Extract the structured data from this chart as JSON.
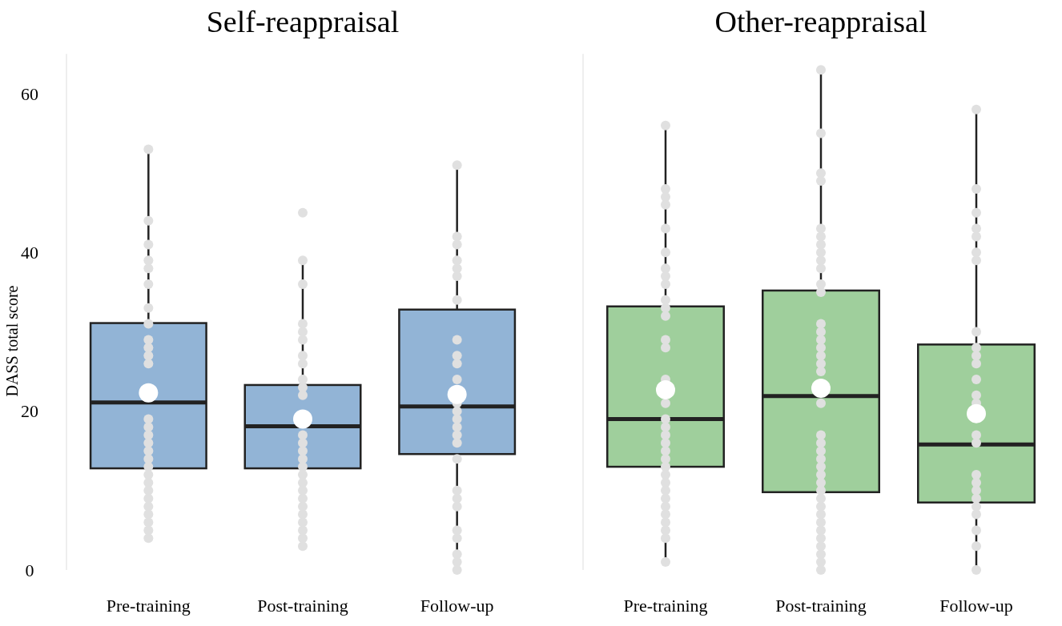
{
  "chart_data": [
    {
      "type": "box",
      "title": "Self-reappraisal",
      "ylabel": "DASS total score",
      "categories": [
        "Pre-training",
        "Post-training",
        "Follow-up"
      ],
      "ylim": [
        0,
        65
      ],
      "yticks": [
        0,
        20,
        40,
        60
      ],
      "grid": false,
      "series": [
        {
          "type": "box",
          "color": "#92b4d6",
          "boxes": [
            {
              "low": 4,
              "q1": 12.8,
              "median": 21.1,
              "q3": 31.1,
              "high": 53,
              "mean": 22.3
            },
            {
              "low": 3,
              "q1": 12.8,
              "median": 18.1,
              "q3": 23.3,
              "high": 39,
              "mean": 19,
              "outliers": [
                45
              ]
            },
            {
              "low": 0,
              "q1": 14.6,
              "median": 20.6,
              "q3": 32.8,
              "high": 51,
              "mean": 22.1
            }
          ]
        },
        {
          "type": "scatter",
          "color": "#e0e0e0",
          "x": [
            "Pre-training",
            "Pre-training",
            "Pre-training",
            "Pre-training",
            "Pre-training",
            "Pre-training",
            "Pre-training",
            "Pre-training",
            "Pre-training",
            "Pre-training",
            "Pre-training",
            "Pre-training",
            "Pre-training",
            "Pre-training",
            "Pre-training",
            "Pre-training",
            "Pre-training",
            "Pre-training",
            "Pre-training",
            "Pre-training",
            "Pre-training",
            "Pre-training",
            "Pre-training",
            "Pre-training",
            "Pre-training",
            "Pre-training",
            "Pre-training",
            "Pre-training",
            "Post-training",
            "Post-training",
            "Post-training",
            "Post-training",
            "Post-training",
            "Post-training",
            "Post-training",
            "Post-training",
            "Post-training",
            "Post-training",
            "Post-training",
            "Post-training",
            "Post-training",
            "Post-training",
            "Post-training",
            "Post-training",
            "Post-training",
            "Post-training",
            "Post-training",
            "Post-training",
            "Post-training",
            "Post-training",
            "Post-training",
            "Post-training",
            "Post-training",
            "Follow-up",
            "Follow-up",
            "Follow-up",
            "Follow-up",
            "Follow-up",
            "Follow-up",
            "Follow-up",
            "Follow-up",
            "Follow-up",
            "Follow-up",
            "Follow-up",
            "Follow-up",
            "Follow-up",
            "Follow-up",
            "Follow-up",
            "Follow-up",
            "Follow-up",
            "Follow-up",
            "Follow-up",
            "Follow-up",
            "Follow-up",
            "Follow-up",
            "Follow-up",
            "Follow-up",
            "Follow-up",
            "Follow-up"
          ],
          "values": [
            53,
            44,
            41,
            39,
            38,
            36,
            33,
            31,
            29,
            28,
            27,
            26,
            19,
            18,
            17,
            16,
            15,
            14,
            13,
            12,
            11,
            10,
            9,
            8,
            7,
            6,
            5,
            4,
            39,
            36,
            31,
            30,
            29,
            27,
            26,
            24,
            23,
            22,
            17,
            16,
            15,
            14,
            13,
            12,
            11,
            10,
            9,
            8,
            7,
            6,
            5,
            4,
            3,
            51,
            42,
            41,
            39,
            38,
            37,
            34,
            29,
            27,
            26,
            24,
            21,
            20,
            19,
            18,
            17,
            16,
            14,
            10,
            9,
            8,
            5,
            4,
            2,
            1,
            0
          ]
        }
      ]
    },
    {
      "type": "box",
      "title": "Other-reappraisal",
      "categories": [
        "Pre-training",
        "Post-training",
        "Follow-up"
      ],
      "ylim": [
        0,
        65
      ],
      "tick_labels": "x",
      "grid": false,
      "series": [
        {
          "type": "box",
          "color": "#9fcf9c",
          "boxes": [
            {
              "low": 1,
              "q1": 13,
              "median": 19,
              "q3": 33.2,
              "high": 56,
              "mean": 22.7
            },
            {
              "low": 0,
              "q1": 9.8,
              "median": 21.9,
              "q3": 35.2,
              "high": 63,
              "mean": 22.9
            },
            {
              "low": 0,
              "q1": 8.5,
              "median": 15.8,
              "q3": 28.4,
              "high": 58,
              "mean": 19.7
            }
          ]
        },
        {
          "type": "scatter",
          "color": "#e0e0e0",
          "x": [
            "Pre-training",
            "Pre-training",
            "Pre-training",
            "Pre-training",
            "Pre-training",
            "Pre-training",
            "Pre-training",
            "Pre-training",
            "Pre-training",
            "Pre-training",
            "Pre-training",
            "Pre-training",
            "Pre-training",
            "Pre-training",
            "Pre-training",
            "Pre-training",
            "Pre-training",
            "Pre-training",
            "Pre-training",
            "Pre-training",
            "Pre-training",
            "Pre-training",
            "Pre-training",
            "Pre-training",
            "Pre-training",
            "Pre-training",
            "Pre-training",
            "Pre-training",
            "Pre-training",
            "Pre-training",
            "Pre-training",
            "Pre-training",
            "Pre-training",
            "Post-training",
            "Post-training",
            "Post-training",
            "Post-training",
            "Post-training",
            "Post-training",
            "Post-training",
            "Post-training",
            "Post-training",
            "Post-training",
            "Post-training",
            "Post-training",
            "Post-training",
            "Post-training",
            "Post-training",
            "Post-training",
            "Post-training",
            "Post-training",
            "Post-training",
            "Post-training",
            "Post-training",
            "Post-training",
            "Post-training",
            "Post-training",
            "Post-training",
            "Post-training",
            "Post-training",
            "Post-training",
            "Post-training",
            "Post-training",
            "Post-training",
            "Post-training",
            "Post-training",
            "Post-training",
            "Post-training",
            "Post-training",
            "Post-training",
            "Post-training",
            "Follow-up",
            "Follow-up",
            "Follow-up",
            "Follow-up",
            "Follow-up",
            "Follow-up",
            "Follow-up",
            "Follow-up",
            "Follow-up",
            "Follow-up",
            "Follow-up",
            "Follow-up",
            "Follow-up",
            "Follow-up",
            "Follow-up",
            "Follow-up",
            "Follow-up",
            "Follow-up",
            "Follow-up",
            "Follow-up",
            "Follow-up",
            "Follow-up",
            "Follow-up",
            "Follow-up",
            "Follow-up"
          ],
          "values": [
            56,
            48,
            47,
            46,
            43,
            40,
            38,
            37,
            36,
            34,
            33,
            32,
            29,
            28,
            24,
            21,
            19,
            18,
            17,
            16,
            15,
            14,
            13,
            12,
            11,
            10,
            9,
            8,
            7,
            6,
            5,
            4,
            1,
            63,
            55,
            50,
            49,
            43,
            42,
            41,
            40,
            39,
            38,
            36,
            35,
            31,
            30,
            29,
            28,
            27,
            26,
            25,
            21,
            17,
            16,
            15,
            14,
            13,
            12,
            11,
            10,
            9,
            8,
            7,
            6,
            5,
            4,
            3,
            2,
            1,
            0,
            58,
            48,
            45,
            43,
            42,
            40,
            39,
            30,
            28,
            27,
            26,
            24,
            22,
            21,
            17,
            16,
            12,
            11,
            10,
            9,
            8,
            7,
            5,
            3,
            0
          ]
        }
      ]
    }
  ]
}
